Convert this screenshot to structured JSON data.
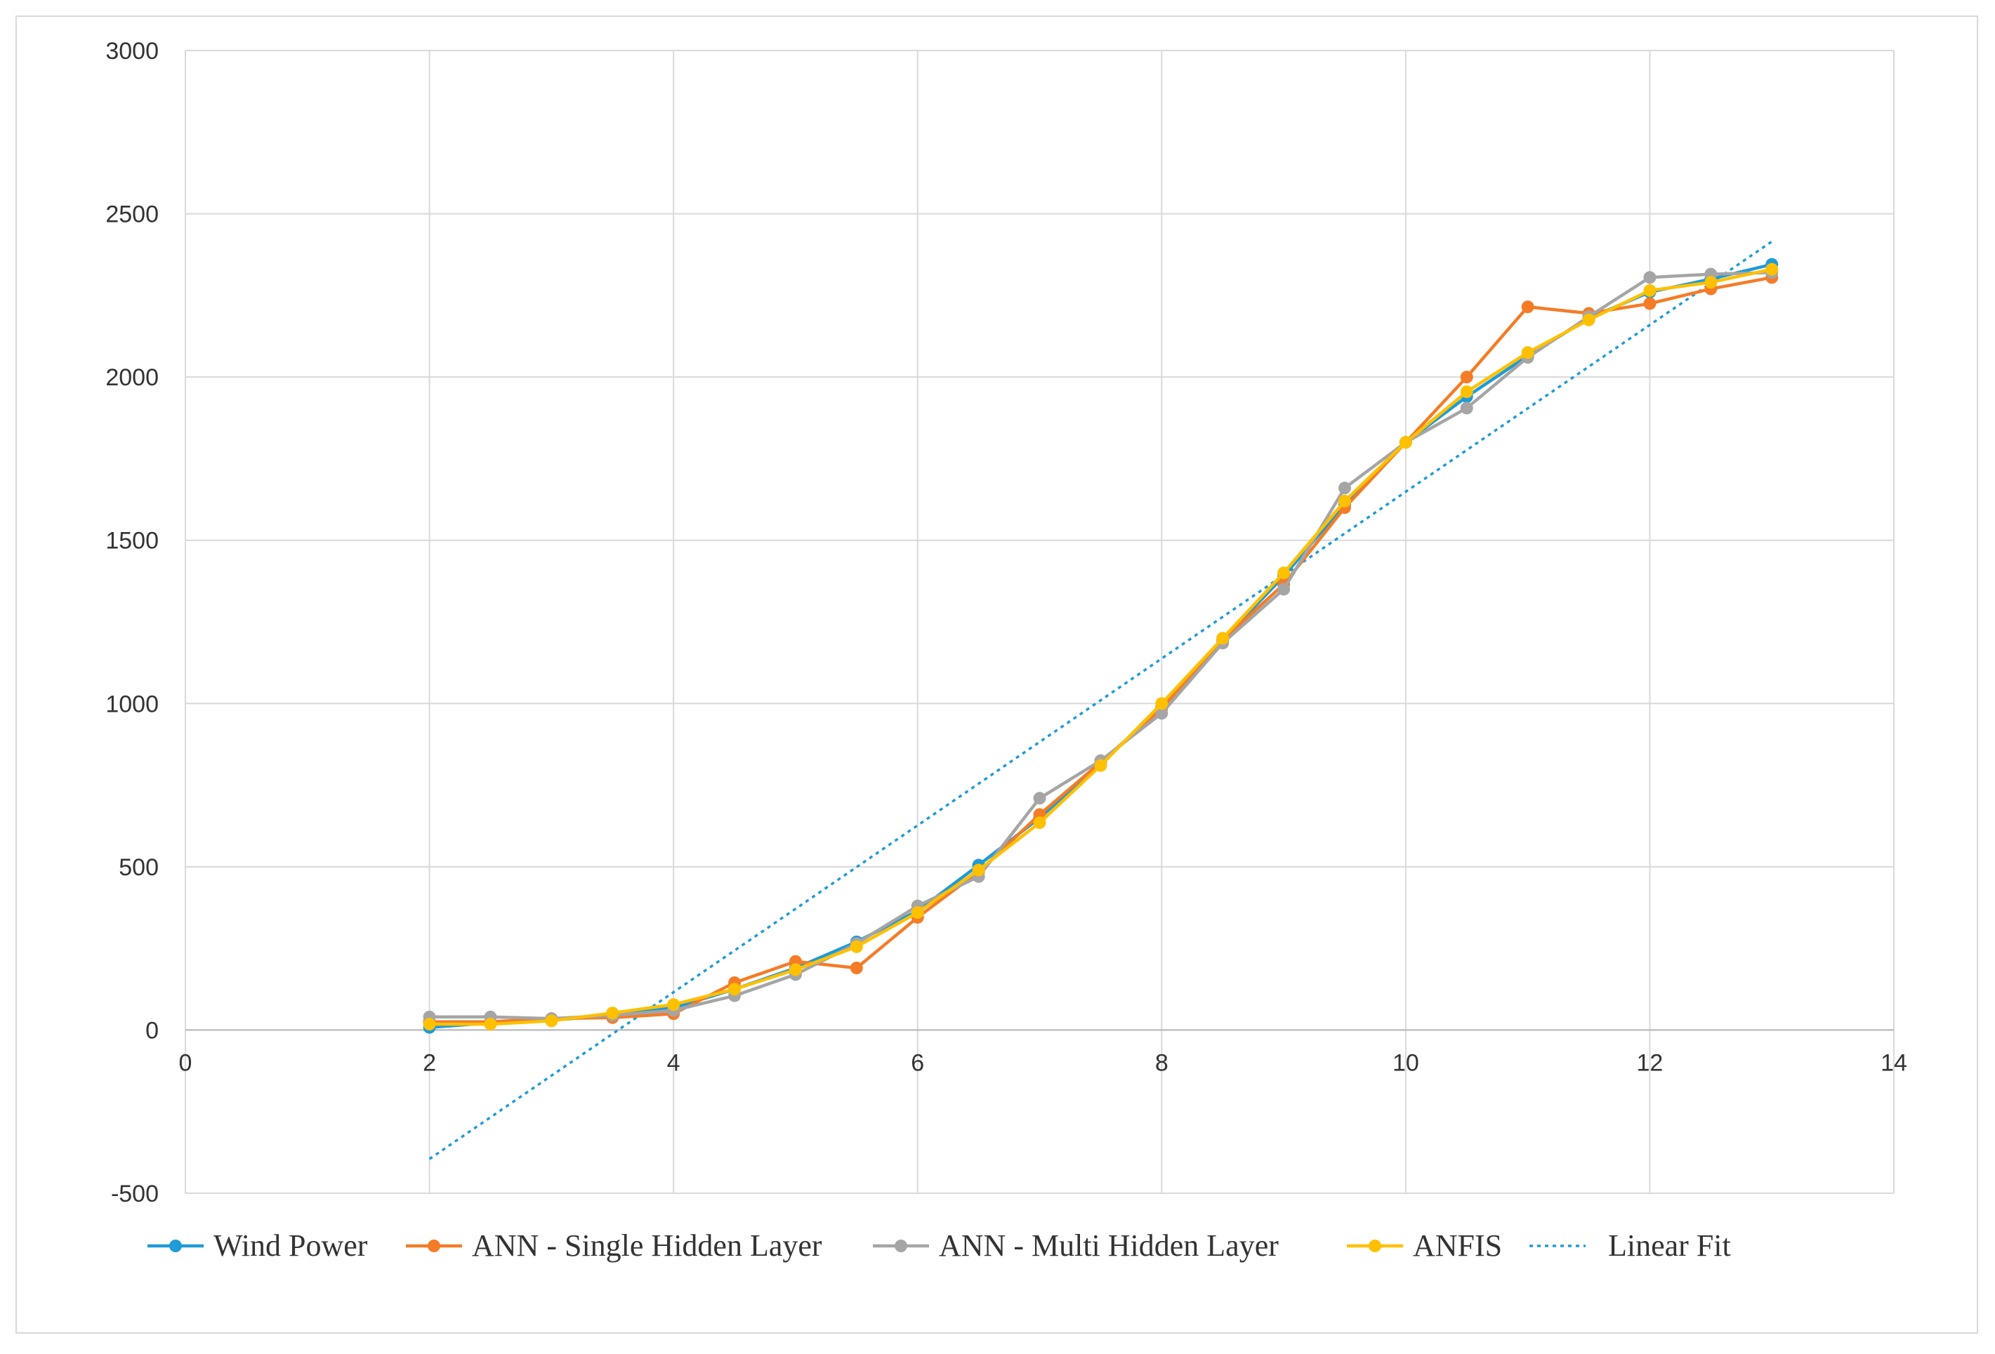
{
  "chart_data": {
    "type": "line",
    "title": "",
    "xlabel": "",
    "ylabel": "",
    "xlim": [
      0,
      14
    ],
    "ylim": [
      -500,
      3000
    ],
    "x_ticks": [
      0,
      2,
      4,
      6,
      8,
      10,
      12,
      14
    ],
    "y_ticks": [
      -500,
      0,
      500,
      1000,
      1500,
      2000,
      2500,
      3000
    ],
    "grid": true,
    "legend_position": "bottom",
    "x": [
      2,
      2.5,
      3,
      3.5,
      4,
      4.5,
      5,
      5.5,
      6,
      6.5,
      7,
      7.5,
      8,
      8.5,
      9,
      9.5,
      10,
      10.5,
      11,
      11.5,
      12,
      12.5,
      13
    ],
    "series": [
      {
        "name": "Wind Power",
        "color": "#1f9bd7",
        "marker": true,
        "values": [
          8,
          22,
          30,
          45,
          68,
          125,
          190,
          270,
          365,
          505,
          650,
          815,
          990,
          1195,
          1390,
          1610,
          1800,
          1940,
          2065,
          2180,
          2260,
          2300,
          2345
        ]
      },
      {
        "name": "ANN - Single Hidden Layer",
        "color": "#f47c27",
        "marker": true,
        "values": [
          25,
          25,
          35,
          38,
          50,
          145,
          210,
          190,
          345,
          485,
          660,
          820,
          985,
          1195,
          1365,
          1600,
          1800,
          2000,
          2215,
          2195,
          2225,
          2270,
          2305
        ]
      },
      {
        "name": "ANN - Multi Hidden Layer",
        "color": "#a5a5a5",
        "marker": true,
        "values": [
          40,
          40,
          35,
          45,
          60,
          105,
          170,
          265,
          380,
          470,
          710,
          825,
          970,
          1185,
          1350,
          1660,
          1800,
          1905,
          2060,
          2185,
          2305,
          2315,
          2320
        ]
      },
      {
        "name": "ANFIS",
        "color": "#ffc000",
        "marker": true,
        "values": [
          18,
          18,
          28,
          52,
          78,
          125,
          185,
          255,
          360,
          490,
          635,
          810,
          1000,
          1200,
          1400,
          1620,
          1800,
          1955,
          2075,
          2175,
          2265,
          2290,
          2330
        ]
      },
      {
        "name": "Linear Fit",
        "color": "#1f9bd7",
        "dashed": true,
        "marker": false,
        "x": [
          2,
          13
        ],
        "values": [
          -395,
          2415
        ]
      }
    ]
  }
}
